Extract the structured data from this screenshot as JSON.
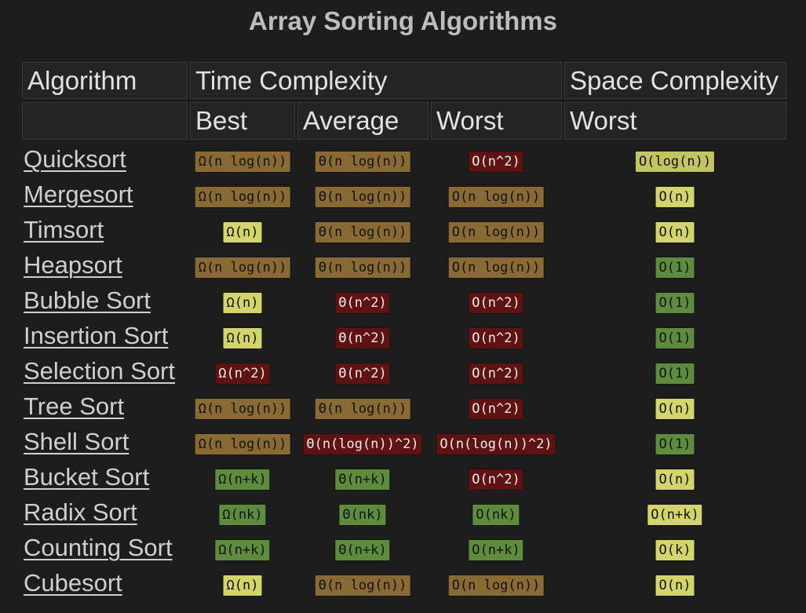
{
  "title": "Array Sorting Algorithms",
  "headers": {
    "algorithm": "Algorithm",
    "time_complexity": "Time Complexity",
    "space_complexity": "Space Complexity",
    "best": "Best",
    "average": "Average",
    "worst": "Worst",
    "space_worst": "Worst"
  },
  "colors": {
    "c-ox": "#8a6a34",
    "c-red": "#5e1212",
    "c-yg": "#c3c463",
    "c-yel": "#d4d46c",
    "c-grn": "#5d8c3f"
  },
  "rows": [
    {
      "name": "Quicksort",
      "best": {
        "text": "Ω(n log(n))",
        "color": "c-ox"
      },
      "average": {
        "text": "Θ(n log(n))",
        "color": "c-ox"
      },
      "worst": {
        "text": "O(n^2)",
        "color": "c-red"
      },
      "space": {
        "text": "O(log(n))",
        "color": "c-yg"
      }
    },
    {
      "name": "Mergesort",
      "best": {
        "text": "Ω(n log(n))",
        "color": "c-ox"
      },
      "average": {
        "text": "Θ(n log(n))",
        "color": "c-ox"
      },
      "worst": {
        "text": "O(n log(n))",
        "color": "c-ox"
      },
      "space": {
        "text": "O(n)",
        "color": "c-yel"
      }
    },
    {
      "name": "Timsort",
      "best": {
        "text": "Ω(n)",
        "color": "c-yel"
      },
      "average": {
        "text": "Θ(n log(n))",
        "color": "c-ox"
      },
      "worst": {
        "text": "O(n log(n))",
        "color": "c-ox"
      },
      "space": {
        "text": "O(n)",
        "color": "c-yel"
      }
    },
    {
      "name": "Heapsort",
      "best": {
        "text": "Ω(n log(n))",
        "color": "c-ox"
      },
      "average": {
        "text": "Θ(n log(n))",
        "color": "c-ox"
      },
      "worst": {
        "text": "O(n log(n))",
        "color": "c-ox"
      },
      "space": {
        "text": "O(1)",
        "color": "c-grn"
      }
    },
    {
      "name": "Bubble Sort",
      "best": {
        "text": "Ω(n)",
        "color": "c-yel"
      },
      "average": {
        "text": "Θ(n^2)",
        "color": "c-red"
      },
      "worst": {
        "text": "O(n^2)",
        "color": "c-red"
      },
      "space": {
        "text": "O(1)",
        "color": "c-grn"
      }
    },
    {
      "name": "Insertion Sort",
      "best": {
        "text": "Ω(n)",
        "color": "c-yel"
      },
      "average": {
        "text": "Θ(n^2)",
        "color": "c-red"
      },
      "worst": {
        "text": "O(n^2)",
        "color": "c-red"
      },
      "space": {
        "text": "O(1)",
        "color": "c-grn"
      }
    },
    {
      "name": "Selection Sort",
      "best": {
        "text": "Ω(n^2)",
        "color": "c-red"
      },
      "average": {
        "text": "Θ(n^2)",
        "color": "c-red"
      },
      "worst": {
        "text": "O(n^2)",
        "color": "c-red"
      },
      "space": {
        "text": "O(1)",
        "color": "c-grn"
      }
    },
    {
      "name": "Tree Sort",
      "best": {
        "text": "Ω(n log(n))",
        "color": "c-ox"
      },
      "average": {
        "text": "Θ(n log(n))",
        "color": "c-ox"
      },
      "worst": {
        "text": "O(n^2)",
        "color": "c-red"
      },
      "space": {
        "text": "O(n)",
        "color": "c-yel"
      }
    },
    {
      "name": "Shell Sort",
      "best": {
        "text": "Ω(n log(n))",
        "color": "c-ox"
      },
      "average": {
        "text": "Θ(n(log(n))^2)",
        "color": "c-red"
      },
      "worst": {
        "text": "O(n(log(n))^2)",
        "color": "c-red"
      },
      "space": {
        "text": "O(1)",
        "color": "c-grn"
      }
    },
    {
      "name": "Bucket Sort",
      "best": {
        "text": "Ω(n+k)",
        "color": "c-grn"
      },
      "average": {
        "text": "Θ(n+k)",
        "color": "c-grn"
      },
      "worst": {
        "text": "O(n^2)",
        "color": "c-red"
      },
      "space": {
        "text": "O(n)",
        "color": "c-yel"
      }
    },
    {
      "name": "Radix Sort",
      "best": {
        "text": "Ω(nk)",
        "color": "c-grn"
      },
      "average": {
        "text": "Θ(nk)",
        "color": "c-grn"
      },
      "worst": {
        "text": "O(nk)",
        "color": "c-grn"
      },
      "space": {
        "text": "O(n+k)",
        "color": "c-yel"
      }
    },
    {
      "name": "Counting Sort",
      "best": {
        "text": "Ω(n+k)",
        "color": "c-grn"
      },
      "average": {
        "text": "Θ(n+k)",
        "color": "c-grn"
      },
      "worst": {
        "text": "O(n+k)",
        "color": "c-grn"
      },
      "space": {
        "text": "O(k)",
        "color": "c-yel"
      }
    },
    {
      "name": "Cubesort",
      "best": {
        "text": "Ω(n)",
        "color": "c-yel"
      },
      "average": {
        "text": "Θ(n log(n))",
        "color": "c-ox"
      },
      "worst": {
        "text": "O(n log(n))",
        "color": "c-ox"
      },
      "space": {
        "text": "O(n)",
        "color": "c-yel"
      }
    }
  ]
}
